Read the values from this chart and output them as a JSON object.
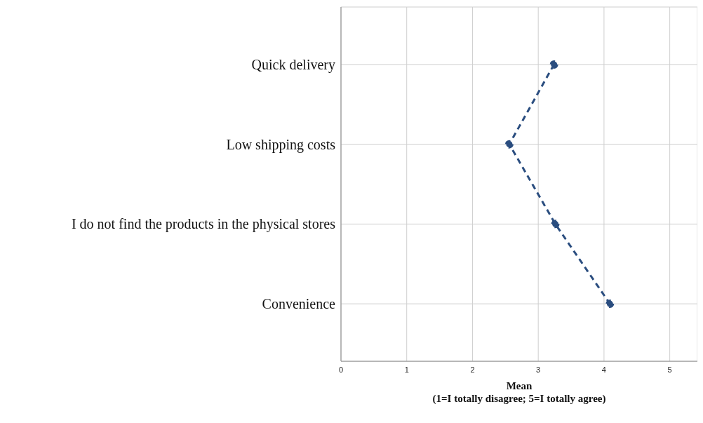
{
  "chart_data": {
    "type": "line",
    "orientation": "horizontal",
    "xlabel": "Mean\n(1=I totally disagree; 5=I totally agree)",
    "categories": [
      "Quick delivery",
      "Low shipping costs",
      "I do not find the products in the physical stores",
      "Convenience"
    ],
    "series": [
      {
        "color": "#2a4d7f",
        "values": [
          3.24,
          2.56,
          3.26,
          4.09
        ]
      }
    ],
    "xlim": [
      0,
      5.42
    ],
    "xticks": [
      0,
      1,
      2,
      3,
      4,
      5
    ],
    "grid": true,
    "marker": "circle",
    "line_style": "dashed"
  }
}
